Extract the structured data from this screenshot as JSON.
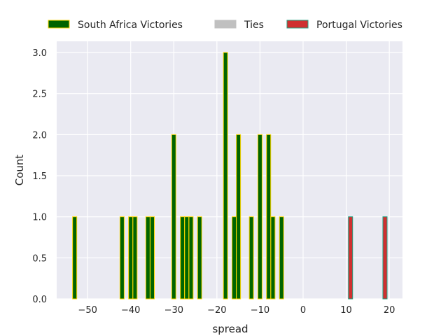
{
  "chart_data": {
    "type": "bar",
    "xlabel": "spread",
    "ylabel": "Count",
    "xlim": [
      -57.5,
      23.5
    ],
    "ylim": [
      0,
      3.15
    ],
    "xticks": [
      -50,
      -40,
      -30,
      -20,
      -10,
      0,
      10,
      20
    ],
    "xtick_labels": [
      "−50",
      "−40",
      "−30",
      "−20",
      "−10",
      "0",
      "10",
      "20"
    ],
    "yticks": [
      0,
      0.5,
      1.0,
      1.5,
      2.0,
      2.5,
      3.0
    ],
    "ytick_labels": [
      "0.0",
      "0.5",
      "1.0",
      "1.5",
      "2.0",
      "2.5",
      "3.0"
    ],
    "grid": true,
    "legend_placement": "top-center-outside",
    "series": [
      {
        "name": "South Africa Victories",
        "fill": "#006400",
        "edge": "#ffd700",
        "x": [
          -53,
          -42,
          -40,
          -39,
          -36,
          -35,
          -30,
          -28,
          -27,
          -26,
          -24,
          -18,
          -16,
          -15,
          -12,
          -10,
          -8,
          -7,
          -5
        ],
        "values": [
          1,
          1,
          1,
          1,
          1,
          1,
          2,
          1,
          1,
          1,
          1,
          3,
          1,
          2,
          1,
          2,
          2,
          1,
          1
        ]
      },
      {
        "name": "Ties",
        "fill": "#c0c0c0",
        "edge": "#c0c0c0",
        "x": [],
        "values": []
      },
      {
        "name": "Portugal Victories",
        "fill": "#d03030",
        "edge": "#20a080",
        "x": [
          11,
          19
        ],
        "values": [
          1,
          1
        ]
      }
    ]
  }
}
